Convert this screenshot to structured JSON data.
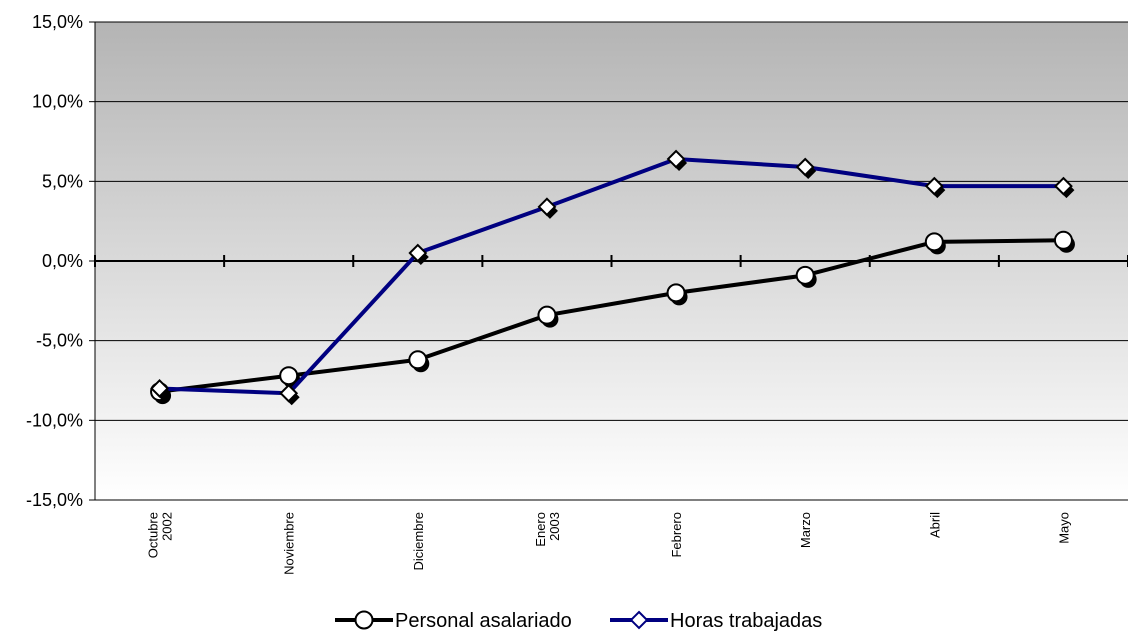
{
  "chart_data": {
    "type": "line",
    "categories": [
      [
        "Octubre",
        "2002"
      ],
      [
        "Noviembre"
      ],
      [
        "Diciembre"
      ],
      [
        "Enero",
        "2003"
      ],
      [
        "Febrero"
      ],
      [
        "Marzo"
      ],
      [
        "Abril"
      ],
      [
        "Mayo"
      ]
    ],
    "series": [
      {
        "name": "Personal asalariado",
        "color": "#000000",
        "marker": "circle",
        "values": [
          -8.2,
          -7.2,
          -6.2,
          -3.4,
          -2.0,
          -0.9,
          1.2,
          1.3
        ]
      },
      {
        "name": "Horas trabajadas",
        "color": "#000080",
        "marker": "diamond",
        "values": [
          -8.0,
          -8.3,
          0.5,
          3.4,
          6.4,
          5.9,
          4.7,
          4.7
        ]
      }
    ],
    "title": "",
    "xlabel": "",
    "ylabel": "",
    "ylim": [
      -15,
      15
    ],
    "yticks": [
      15,
      10,
      5,
      0,
      -5,
      -10,
      -15
    ],
    "ytick_labels": [
      "15,0%",
      "10,0%",
      "5,0%",
      "0,0%",
      "-5,0%",
      "-10,0%",
      "-15,0%"
    ],
    "grid": true,
    "legend_position": "bottom-center",
    "background": "vertical gradient grey to white"
  }
}
